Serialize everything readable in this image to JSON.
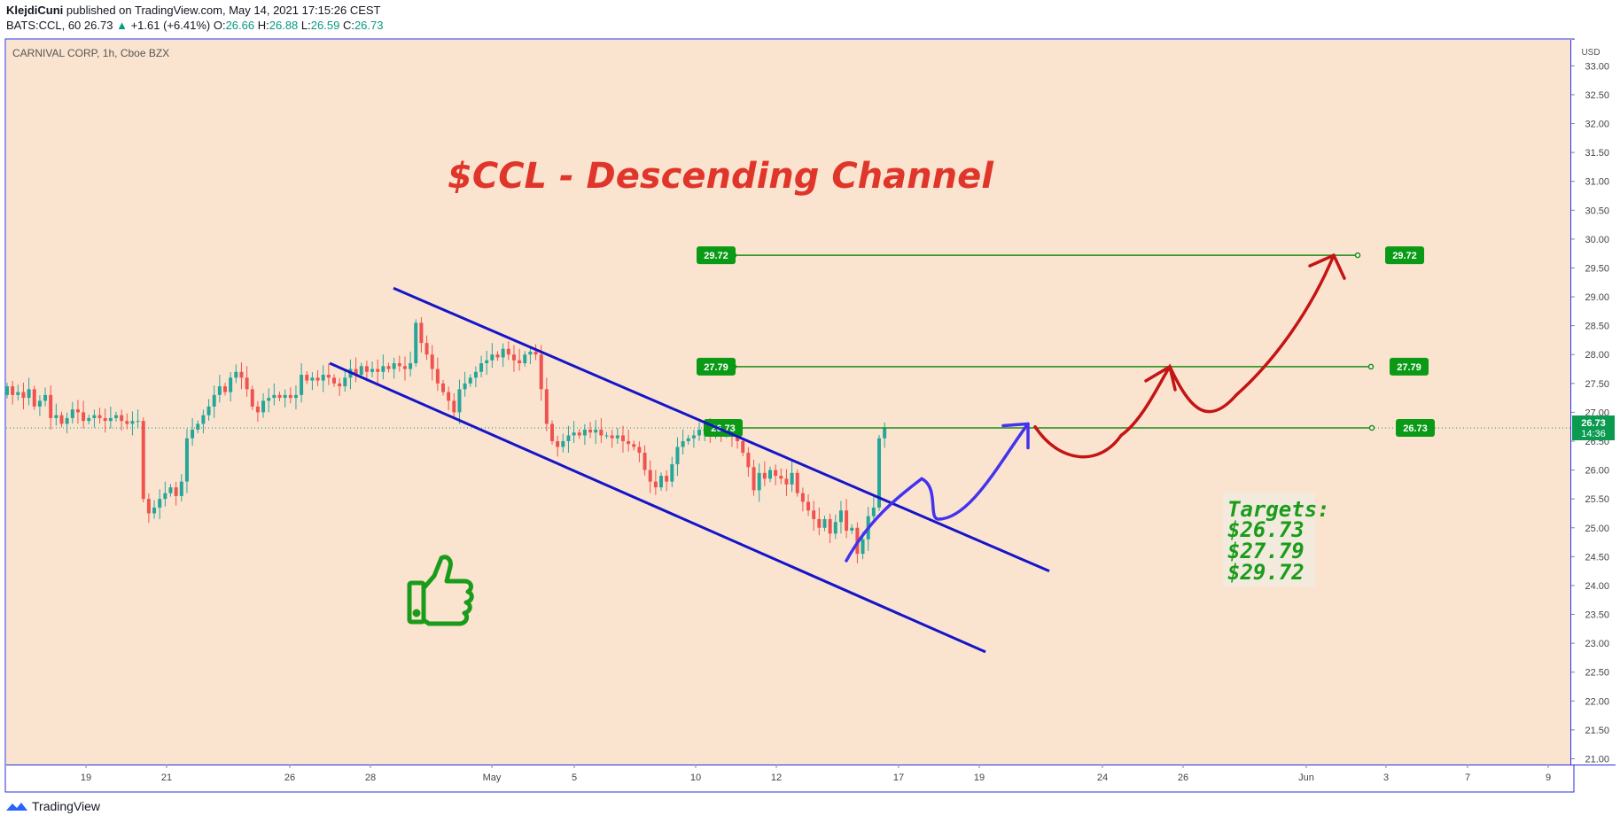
{
  "header": {
    "publisher": "KlejdiCuni",
    "published_text": "published on TradingView.com, May 14, 2021 17:15:26 CEST",
    "symbol": "BATS:CCL, 60",
    "last": "26.73",
    "change": "+1.61 (+6.41%)",
    "o_label": "O:",
    "o_value": "26.66",
    "h_label": "H:",
    "h_value": "26.88",
    "l_label": "L:",
    "l_value": "26.59",
    "c_label": "C:",
    "c_value": "26.73"
  },
  "legend_text": "CARNIVAL CORP, 1h, Cboe BZX",
  "annotation_title": "$CCL - Descending Channel",
  "targets": {
    "heading": "Targets:",
    "values": [
      "$26.73",
      "$27.79",
      "$29.72"
    ]
  },
  "footer_brand": "TradingView",
  "colors": {
    "background": "#fbe4cf",
    "up": "#26a69a",
    "down": "#ef5350",
    "channel": "#1515c8",
    "projection_blue": "#4433ee",
    "projection_red": "#c41414",
    "target_line": "#1a8c1a",
    "price_label": "#089981",
    "title": "#e0352a"
  },
  "chart_data": {
    "type": "candlestick",
    "currency": "USD",
    "y_ticks": [
      "33.00",
      "32.50",
      "32.00",
      "31.50",
      "31.00",
      "30.50",
      "30.00",
      "29.50",
      "29.00",
      "28.50",
      "28.00",
      "27.50",
      "27.00",
      "26.50",
      "26.00",
      "25.50",
      "25.00",
      "24.50",
      "24.00",
      "23.50",
      "23.00",
      "22.50",
      "22.00",
      "21.50",
      "21.00"
    ],
    "ylim": [
      20.9,
      33.45
    ],
    "x_ticks": [
      "19",
      "21",
      "26",
      "28",
      "May",
      "5",
      "10",
      "12",
      "17",
      "19",
      "24",
      "26",
      "Jun",
      "3",
      "7",
      "9"
    ],
    "last_price": "26.73",
    "last_price_countdown": "14:36",
    "price_levels": [
      {
        "label": "29.72",
        "value": 29.72
      },
      {
        "label": "27.79",
        "value": 27.79
      },
      {
        "label": "26.73",
        "value": 26.73
      }
    ],
    "channel_upper": [
      {
        "t": "Apr 28",
        "price": 29.15
      },
      {
        "t": "May 20",
        "price": 24.25
      }
    ],
    "channel_lower": [
      {
        "t": "Apr 27",
        "price": 27.85
      },
      {
        "t": "May 19",
        "price": 22.85
      }
    ],
    "projection_blue": [
      24.43,
      25.5,
      25.85,
      25.15,
      25.6,
      26.8
    ],
    "projection_red": [
      26.75,
      26.2,
      26.6,
      27.79,
      27.3,
      28.3,
      29.72
    ],
    "closes": [
      27.45,
      27.3,
      27.35,
      27.25,
      27.4,
      27.1,
      27.2,
      27.3,
      26.9,
      26.95,
      26.8,
      26.9,
      27.05,
      27.0,
      26.85,
      26.9,
      26.95,
      26.9,
      26.85,
      26.9,
      26.95,
      26.85,
      26.8,
      26.85,
      26.85,
      25.5,
      25.25,
      25.35,
      25.5,
      25.6,
      25.7,
      25.55,
      25.8,
      26.55,
      26.7,
      26.8,
      26.95,
      27.1,
      27.3,
      27.45,
      27.35,
      27.6,
      27.7,
      27.6,
      27.4,
      27.1,
      27.0,
      27.2,
      27.25,
      27.3,
      27.25,
      27.3,
      27.25,
      27.3,
      27.65,
      27.55,
      27.6,
      27.55,
      27.65,
      27.6,
      27.5,
      27.45,
      27.6,
      27.75,
      27.65,
      27.8,
      27.7,
      27.75,
      27.7,
      27.8,
      27.75,
      27.85,
      27.8,
      27.75,
      27.85,
      28.55,
      28.2,
      28.0,
      27.75,
      27.5,
      27.35,
      27.2,
      27.0,
      27.4,
      27.5,
      27.6,
      27.7,
      27.85,
      27.9,
      28.0,
      27.95,
      28.1,
      28.0,
      27.9,
      27.85,
      28.0,
      28.05,
      28.0,
      27.4,
      26.8,
      26.5,
      26.4,
      26.5,
      26.6,
      26.65,
      26.6,
      26.7,
      26.65,
      26.7,
      26.6,
      26.6,
      26.55,
      26.6,
      26.5,
      26.45,
      26.4,
      26.3,
      26.0,
      25.8,
      25.7,
      25.9,
      25.8,
      26.1,
      26.4,
      26.5,
      26.55,
      26.6,
      26.7,
      26.7,
      26.6,
      26.75,
      26.65,
      26.7,
      26.6,
      26.5,
      26.3,
      26.05,
      25.65,
      25.95,
      25.85,
      26.0,
      25.9,
      25.85,
      25.75,
      25.95,
      25.6,
      25.45,
      25.3,
      25.15,
      25.0,
      25.15,
      24.9,
      25.1,
      25.3,
      24.95,
      25.0,
      24.55,
      24.8,
      25.2,
      25.35,
      26.55,
      26.73
    ]
  }
}
